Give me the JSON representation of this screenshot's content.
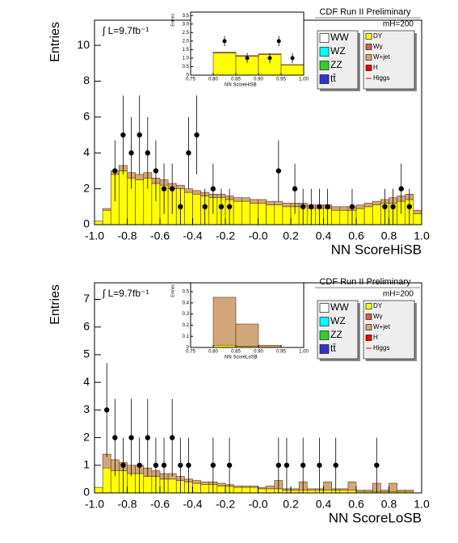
{
  "chart_data": [
    {
      "type": "histogram",
      "title": "CDF Run II Preliminary",
      "luminosity": "∫ L=9.7fb⁻¹",
      "mass_label": "mH=200",
      "xlabel": "NN ScoreHiSB",
      "ylabel": "Entries",
      "xlim": [
        -1,
        1
      ],
      "ylim": [
        0,
        11.4
      ],
      "xticks": [
        {
          "value": -1,
          "label": "-1.0"
        },
        {
          "value": -0.8,
          "label": "-0.8"
        },
        {
          "value": -0.6,
          "label": "-0.6"
        },
        {
          "value": -0.4,
          "label": "-0.4"
        },
        {
          "value": -0.2,
          "label": "-0.2"
        },
        {
          "value": 0,
          "label": "-0.0"
        },
        0.2,
        0.4,
        0.6,
        0.8,
        {
          "value": 1,
          "label": "1.0"
        }
      ],
      "yticks": [
        0,
        2,
        4,
        6,
        8,
        10
      ],
      "bins": [
        -1,
        -0.95,
        -0.9,
        -0.85,
        -0.8,
        -0.75,
        -0.7,
        -0.65,
        -0.6,
        -0.55,
        -0.5,
        -0.45,
        -0.4,
        -0.35,
        -0.3,
        -0.25,
        -0.2,
        -0.15,
        -0.1,
        -0.05,
        0,
        0.05,
        0.1,
        0.15,
        0.2,
        0.25,
        0.3,
        0.35,
        0.4,
        0.45,
        0.5,
        0.55,
        0.6,
        0.65,
        0.7,
        0.75,
        0.8,
        0.85,
        0.9,
        0.95,
        1
      ],
      "series": [
        {
          "name": "WW",
          "color": "#ffffff"
        },
        {
          "name": "WZ",
          "color": "#00ffff"
        },
        {
          "name": "ZZ",
          "color": "#33cc33"
        },
        {
          "name": "tt̄",
          "color": "#3333cc"
        },
        {
          "name": "DY",
          "color": "#ffff00",
          "values": [
            0.2,
            0.8,
            2.8,
            3.0,
            2.6,
            2.5,
            2.6,
            2.3,
            2.2,
            2.0,
            2.0,
            1.8,
            1.7,
            1.6,
            1.5,
            1.5,
            1.4,
            1.3,
            1.3,
            1.2,
            1.2,
            1.1,
            1.1,
            1.0,
            1.0,
            1.0,
            0.9,
            0.9,
            0.9,
            0.8,
            0.8,
            0.8,
            0.9,
            1.0,
            1.1,
            1.2,
            1.2,
            1.3,
            1.4,
            0.6
          ]
        },
        {
          "name": "Wγ",
          "color": "#cc6644"
        },
        {
          "name": "W+jet",
          "color": "#d2a679",
          "values": [
            0,
            0.1,
            0.2,
            0.3,
            0.3,
            0.3,
            0.3,
            0.3,
            0.3,
            0.3,
            0.2,
            0.2,
            0.2,
            0.2,
            0.2,
            0.2,
            0.2,
            0.2,
            0.2,
            0.2,
            0.2,
            0.2,
            0.2,
            0.2,
            0.2,
            0.2,
            0.2,
            0.2,
            0.2,
            0.2,
            0.2,
            0.2,
            0.2,
            0.2,
            0.2,
            0.2,
            0.3,
            0.3,
            0.3,
            0.2
          ]
        },
        {
          "name": "H",
          "color": "#ee0000"
        },
        {
          "name": "Higgs",
          "color": "#ee0000",
          "style": "line"
        }
      ],
      "data": {
        "x": [
          -0.875,
          -0.825,
          -0.775,
          -0.725,
          -0.675,
          -0.625,
          -0.575,
          -0.525,
          -0.475,
          -0.425,
          -0.375,
          -0.325,
          -0.275,
          -0.225,
          -0.175,
          0.125,
          0.225,
          0.275,
          0.325,
          0.375,
          0.425,
          0.575,
          0.775,
          0.825,
          0.875,
          0.925
        ],
        "values": [
          3,
          5,
          4,
          5,
          4,
          3,
          2,
          2,
          1,
          4,
          5,
          1,
          2,
          1,
          1,
          3,
          2,
          1,
          1,
          1,
          1,
          1,
          1,
          1,
          2,
          1
        ],
        "errors": [
          1.7,
          2.2,
          2,
          2.2,
          2,
          1.7,
          1.4,
          1.4,
          1,
          2,
          2.2,
          1,
          1.4,
          1,
          1,
          1.7,
          1.4,
          1,
          1,
          1,
          1,
          1,
          1,
          1,
          1.4,
          1
        ]
      },
      "inset": {
        "xlabel": "NN ScoreHiSB",
        "ylabel": "Entries",
        "xlim": [
          0.75,
          1
        ],
        "ylim": [
          0,
          3.7
        ],
        "xticks": [
          0.75,
          {
            "value": 0.8,
            "label": "0.80"
          },
          0.85,
          {
            "value": 0.9,
            "label": "0.90"
          },
          0.95,
          {
            "value": 1,
            "label": "1.00"
          }
        ],
        "yticks": [
          0,
          0.5,
          {
            "value": 1,
            "label": "1.0"
          },
          1.5,
          {
            "value": 2,
            "label": "2.0"
          },
          2.5,
          {
            "value": 3,
            "label": "3.0"
          },
          3.5
        ],
        "bins": [
          0.75,
          0.8,
          0.85,
          0.9,
          0.95,
          1
        ],
        "series": [
          {
            "color": "#ffff00",
            "values": [
              0,
              1.3,
              1.1,
              1.2,
              0.6
            ]
          },
          {
            "color": "#d2a679",
            "values": [
              0,
              0.05,
              0.05,
              0.05,
              0.02
            ]
          }
        ],
        "data": {
          "x": [
            0.825,
            0.875,
            0.925,
            0.945,
            0.975
          ],
          "values": [
            2,
            1,
            1,
            2,
            1
          ],
          "errors": [
            0.3,
            0.3,
            0.3,
            0.3,
            0.3
          ]
        }
      }
    },
    {
      "type": "histogram",
      "title": "CDF Run II Preliminary",
      "luminosity": "∫ L=9.7fb⁻¹",
      "mass_label": "mH=200",
      "xlabel": "NN ScoreLoSB",
      "ylabel": "Entries",
      "xlim": [
        -1,
        1
      ],
      "ylim": [
        0,
        7.6
      ],
      "xticks": [
        {
          "value": -1,
          "label": "-1.0"
        },
        {
          "value": -0.8,
          "label": "-0.8"
        },
        {
          "value": -0.6,
          "label": "-0.6"
        },
        {
          "value": -0.4,
          "label": "-0.4"
        },
        {
          "value": -0.2,
          "label": "-0.2"
        },
        {
          "value": 0,
          "label": "-0.0"
        },
        0.2,
        0.4,
        0.6,
        0.8,
        {
          "value": 1,
          "label": "1.0"
        }
      ],
      "yticks": [
        0,
        1,
        2,
        3,
        4,
        5,
        6,
        7
      ],
      "bins": [
        -1,
        -0.95,
        -0.9,
        -0.85,
        -0.8,
        -0.75,
        -0.7,
        -0.65,
        -0.6,
        -0.55,
        -0.5,
        -0.45,
        -0.4,
        -0.35,
        -0.3,
        -0.25,
        -0.2,
        -0.15,
        -0.1,
        -0.05,
        0,
        0.05,
        0.1,
        0.15,
        0.2,
        0.25,
        0.3,
        0.35,
        0.4,
        0.45,
        0.5,
        0.55,
        0.6,
        0.65,
        0.7,
        0.75,
        0.8,
        0.85,
        0.9,
        0.95,
        1
      ],
      "series": [
        {
          "name": "WW",
          "color": "#ffffff"
        },
        {
          "name": "WZ",
          "color": "#00ffff"
        },
        {
          "name": "ZZ",
          "color": "#33cc33"
        },
        {
          "name": "tt̄",
          "color": "#3333cc"
        },
        {
          "name": "DY",
          "color": "#ffff00",
          "values": [
            0.2,
            0.9,
            0.8,
            0.8,
            0.7,
            0.7,
            0.6,
            0.6,
            0.5,
            0.5,
            0.45,
            0.4,
            0.35,
            0.3,
            0.3,
            0.25,
            0.25,
            0.2,
            0.2,
            0.2,
            0.15,
            0.15,
            0.15,
            0.1,
            0.1,
            0.1,
            0.1,
            0.1,
            0.1,
            0.1,
            0.1,
            0.1,
            0.05,
            0.05,
            0.05,
            0.05,
            0.05,
            0.05,
            0.05,
            0
          ]
        },
        {
          "name": "Wγ",
          "color": "#cc6644"
        },
        {
          "name": "W+jet",
          "color": "#d2a679",
          "values": [
            0,
            0.5,
            0.4,
            0.3,
            0.3,
            0.3,
            0.3,
            0.2,
            0.2,
            0.2,
            0.15,
            0.1,
            0.1,
            0.1,
            0.1,
            0.1,
            0.05,
            0.05,
            0.05,
            0.05,
            0.05,
            0.1,
            0.3,
            0.05,
            0.05,
            0.3,
            0.05,
            0.05,
            0.3,
            0.05,
            0.05,
            0.3,
            0.05,
            0.05,
            0.3,
            0.05,
            0.3,
            0.05,
            0.05,
            0
          ]
        },
        {
          "name": "H",
          "color": "#ee0000"
        },
        {
          "name": "Higgs",
          "color": "#ee0000",
          "style": "line"
        }
      ],
      "data": {
        "x": [
          -0.925,
          -0.875,
          -0.825,
          -0.775,
          -0.725,
          -0.675,
          -0.625,
          -0.575,
          -0.525,
          -0.475,
          -0.425,
          -0.275,
          -0.175,
          0.125,
          0.175,
          0.275,
          0.375,
          0.475,
          0.725
        ],
        "values": [
          3,
          2,
          1,
          2,
          1,
          2,
          1,
          1,
          2,
          1,
          1,
          1,
          1,
          1,
          1,
          1,
          1,
          1,
          1
        ],
        "errors": [
          1.7,
          1.4,
          1,
          1.4,
          1,
          1.4,
          1,
          1,
          1.4,
          1,
          1,
          1,
          1,
          1,
          1,
          1,
          1,
          1,
          1
        ]
      },
      "inset": {
        "xlabel": "NN ScoreLoSB",
        "ylabel": "Entries",
        "xlim": [
          0.75,
          1
        ],
        "ylim": [
          0,
          0.58
        ],
        "xticks": [
          0.75,
          {
            "value": 0.8,
            "label": "0.80"
          },
          0.85,
          {
            "value": 0.9,
            "label": "0.90"
          },
          0.95,
          {
            "value": 1,
            "label": "1.00"
          }
        ],
        "yticks": [
          0,
          0.1,
          0.2,
          0.3,
          0.4,
          0.5
        ],
        "bins": [
          0.75,
          0.8,
          0.85,
          0.9,
          0.95,
          1
        ],
        "series": [
          {
            "color": "#ffff00",
            "values": [
              0,
              0.02,
              0.01,
              0,
              0
            ]
          },
          {
            "color": "#d2a679",
            "values": [
              0,
              0.43,
              0.2,
              0.02,
              0
            ]
          }
        ]
      }
    }
  ]
}
